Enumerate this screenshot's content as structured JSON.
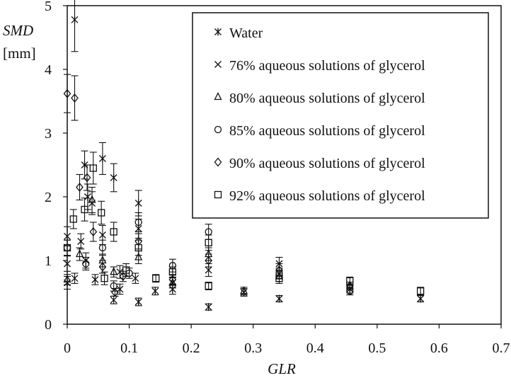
{
  "chart_data": {
    "type": "scatter",
    "xlabel": "GLR",
    "ylabel": "SMD",
    "yunit": "[mm]",
    "xlim": [
      0,
      0.7
    ],
    "ylim": [
      0,
      5
    ],
    "xticks": [
      "0",
      "0.1",
      "0.2",
      "0.3",
      "0.4",
      "0.5",
      "0.6",
      "0.7"
    ],
    "yticks": [
      "0",
      "1",
      "2",
      "3",
      "4",
      "5"
    ],
    "grid": false,
    "legend_position": "top-right",
    "series": [
      {
        "name": "Water",
        "marker": "asterisk",
        "points": [
          [
            0.0,
            0.65,
            0.1
          ],
          [
            0.012,
            4.78,
            0.5
          ],
          [
            0.028,
            2.5,
            0.22
          ],
          [
            0.033,
            2.0,
            0.2
          ],
          [
            0.045,
            0.7,
            0.08
          ],
          [
            0.057,
            2.6,
            0.25
          ],
          [
            0.075,
            2.3,
            0.22
          ],
          [
            0.085,
            0.55,
            0.08
          ],
          [
            0.115,
            1.9,
            0.2
          ],
          [
            0.115,
            0.35,
            0.06
          ],
          [
            0.142,
            0.52,
            0.06
          ],
          [
            0.17,
            0.55,
            0.08
          ],
          [
            0.228,
            0.27,
            0.05
          ],
          [
            0.285,
            0.5,
            0.06
          ],
          [
            0.342,
            0.4,
            0.05
          ],
          [
            0.456,
            0.55,
            0.06
          ],
          [
            0.57,
            0.4,
            0.05
          ]
        ]
      },
      {
        "name": "76% aqueous solutions of glycerol",
        "marker": "x",
        "points": [
          [
            0.0,
            1.38,
            0.15
          ],
          [
            0.0,
            0.95,
            0.12
          ],
          [
            0.012,
            0.72,
            0.08
          ],
          [
            0.022,
            1.3,
            0.12
          ],
          [
            0.03,
            1.0,
            0.12
          ],
          [
            0.04,
            1.9,
            0.18
          ],
          [
            0.057,
            1.4,
            0.15
          ],
          [
            0.075,
            0.38,
            0.06
          ],
          [
            0.085,
            0.82,
            0.1
          ],
          [
            0.11,
            0.72,
            0.08
          ],
          [
            0.115,
            1.5,
            0.15
          ],
          [
            0.17,
            0.65,
            0.08
          ],
          [
            0.228,
            0.85,
            0.1
          ],
          [
            0.342,
            0.95,
            0.1
          ]
        ]
      },
      {
        "name": "80% aqueous solutions of glycerol",
        "marker": "triangle",
        "points": [
          [
            0.0,
            0.7,
            0.08
          ],
          [
            0.02,
            1.1,
            0.1
          ],
          [
            0.04,
            1.95,
            0.2
          ],
          [
            0.057,
            1.0,
            0.1
          ],
          [
            0.075,
            0.82,
            0.08
          ],
          [
            0.115,
            1.05,
            0.1
          ],
          [
            0.17,
            0.65,
            0.08
          ],
          [
            0.228,
            1.1,
            0.1
          ],
          [
            0.285,
            0.52,
            0.06
          ],
          [
            0.342,
            0.75,
            0.08
          ],
          [
            0.456,
            0.6,
            0.06
          ]
        ]
      },
      {
        "name": "85% aqueous solutions of glycerol",
        "marker": "circle",
        "points": [
          [
            0.0,
            1.2,
            0.12
          ],
          [
            0.03,
            0.95,
            0.1
          ],
          [
            0.057,
            1.2,
            0.12
          ],
          [
            0.075,
            0.6,
            0.08
          ],
          [
            0.1,
            0.8,
            0.08
          ],
          [
            0.115,
            1.6,
            0.15
          ],
          [
            0.17,
            0.92,
            0.1
          ],
          [
            0.228,
            1.45,
            0.12
          ],
          [
            0.342,
            0.8,
            0.08
          ],
          [
            0.456,
            0.52,
            0.06
          ]
        ]
      },
      {
        "name": "90% aqueous solutions of glycerol",
        "marker": "diamond",
        "points": [
          [
            0.0,
            3.62,
            0.3
          ],
          [
            0.012,
            3.55,
            0.35
          ],
          [
            0.02,
            2.15,
            0.2
          ],
          [
            0.032,
            2.3,
            0.2
          ],
          [
            0.042,
            1.45,
            0.15
          ],
          [
            0.057,
            0.9,
            0.1
          ],
          [
            0.077,
            0.5,
            0.06
          ],
          [
            0.09,
            0.75,
            0.08
          ],
          [
            0.115,
            1.3,
            0.12
          ],
          [
            0.17,
            0.7,
            0.08
          ],
          [
            0.228,
            1.0,
            0.1
          ],
          [
            0.342,
            0.85,
            0.1
          ],
          [
            0.456,
            0.6,
            0.06
          ]
        ]
      },
      {
        "name": "92% aqueous solutions of glycerol",
        "marker": "square",
        "points": [
          [
            0.0,
            1.2,
            0.12
          ],
          [
            0.01,
            1.65,
            0.15
          ],
          [
            0.028,
            1.8,
            0.18
          ],
          [
            0.042,
            2.45,
            0.25
          ],
          [
            0.055,
            1.75,
            0.18
          ],
          [
            0.06,
            0.72,
            0.1
          ],
          [
            0.075,
            1.45,
            0.15
          ],
          [
            0.095,
            0.85,
            0.1
          ],
          [
            0.115,
            1.2,
            0.12
          ],
          [
            0.143,
            0.72,
            0.06
          ],
          [
            0.17,
            0.82,
            0.08
          ],
          [
            0.228,
            1.28,
            0.12
          ],
          [
            0.228,
            0.6,
            0.06
          ],
          [
            0.342,
            0.72,
            0.08
          ],
          [
            0.456,
            0.68,
            0.06
          ],
          [
            0.57,
            0.52,
            0.06
          ]
        ]
      }
    ]
  }
}
